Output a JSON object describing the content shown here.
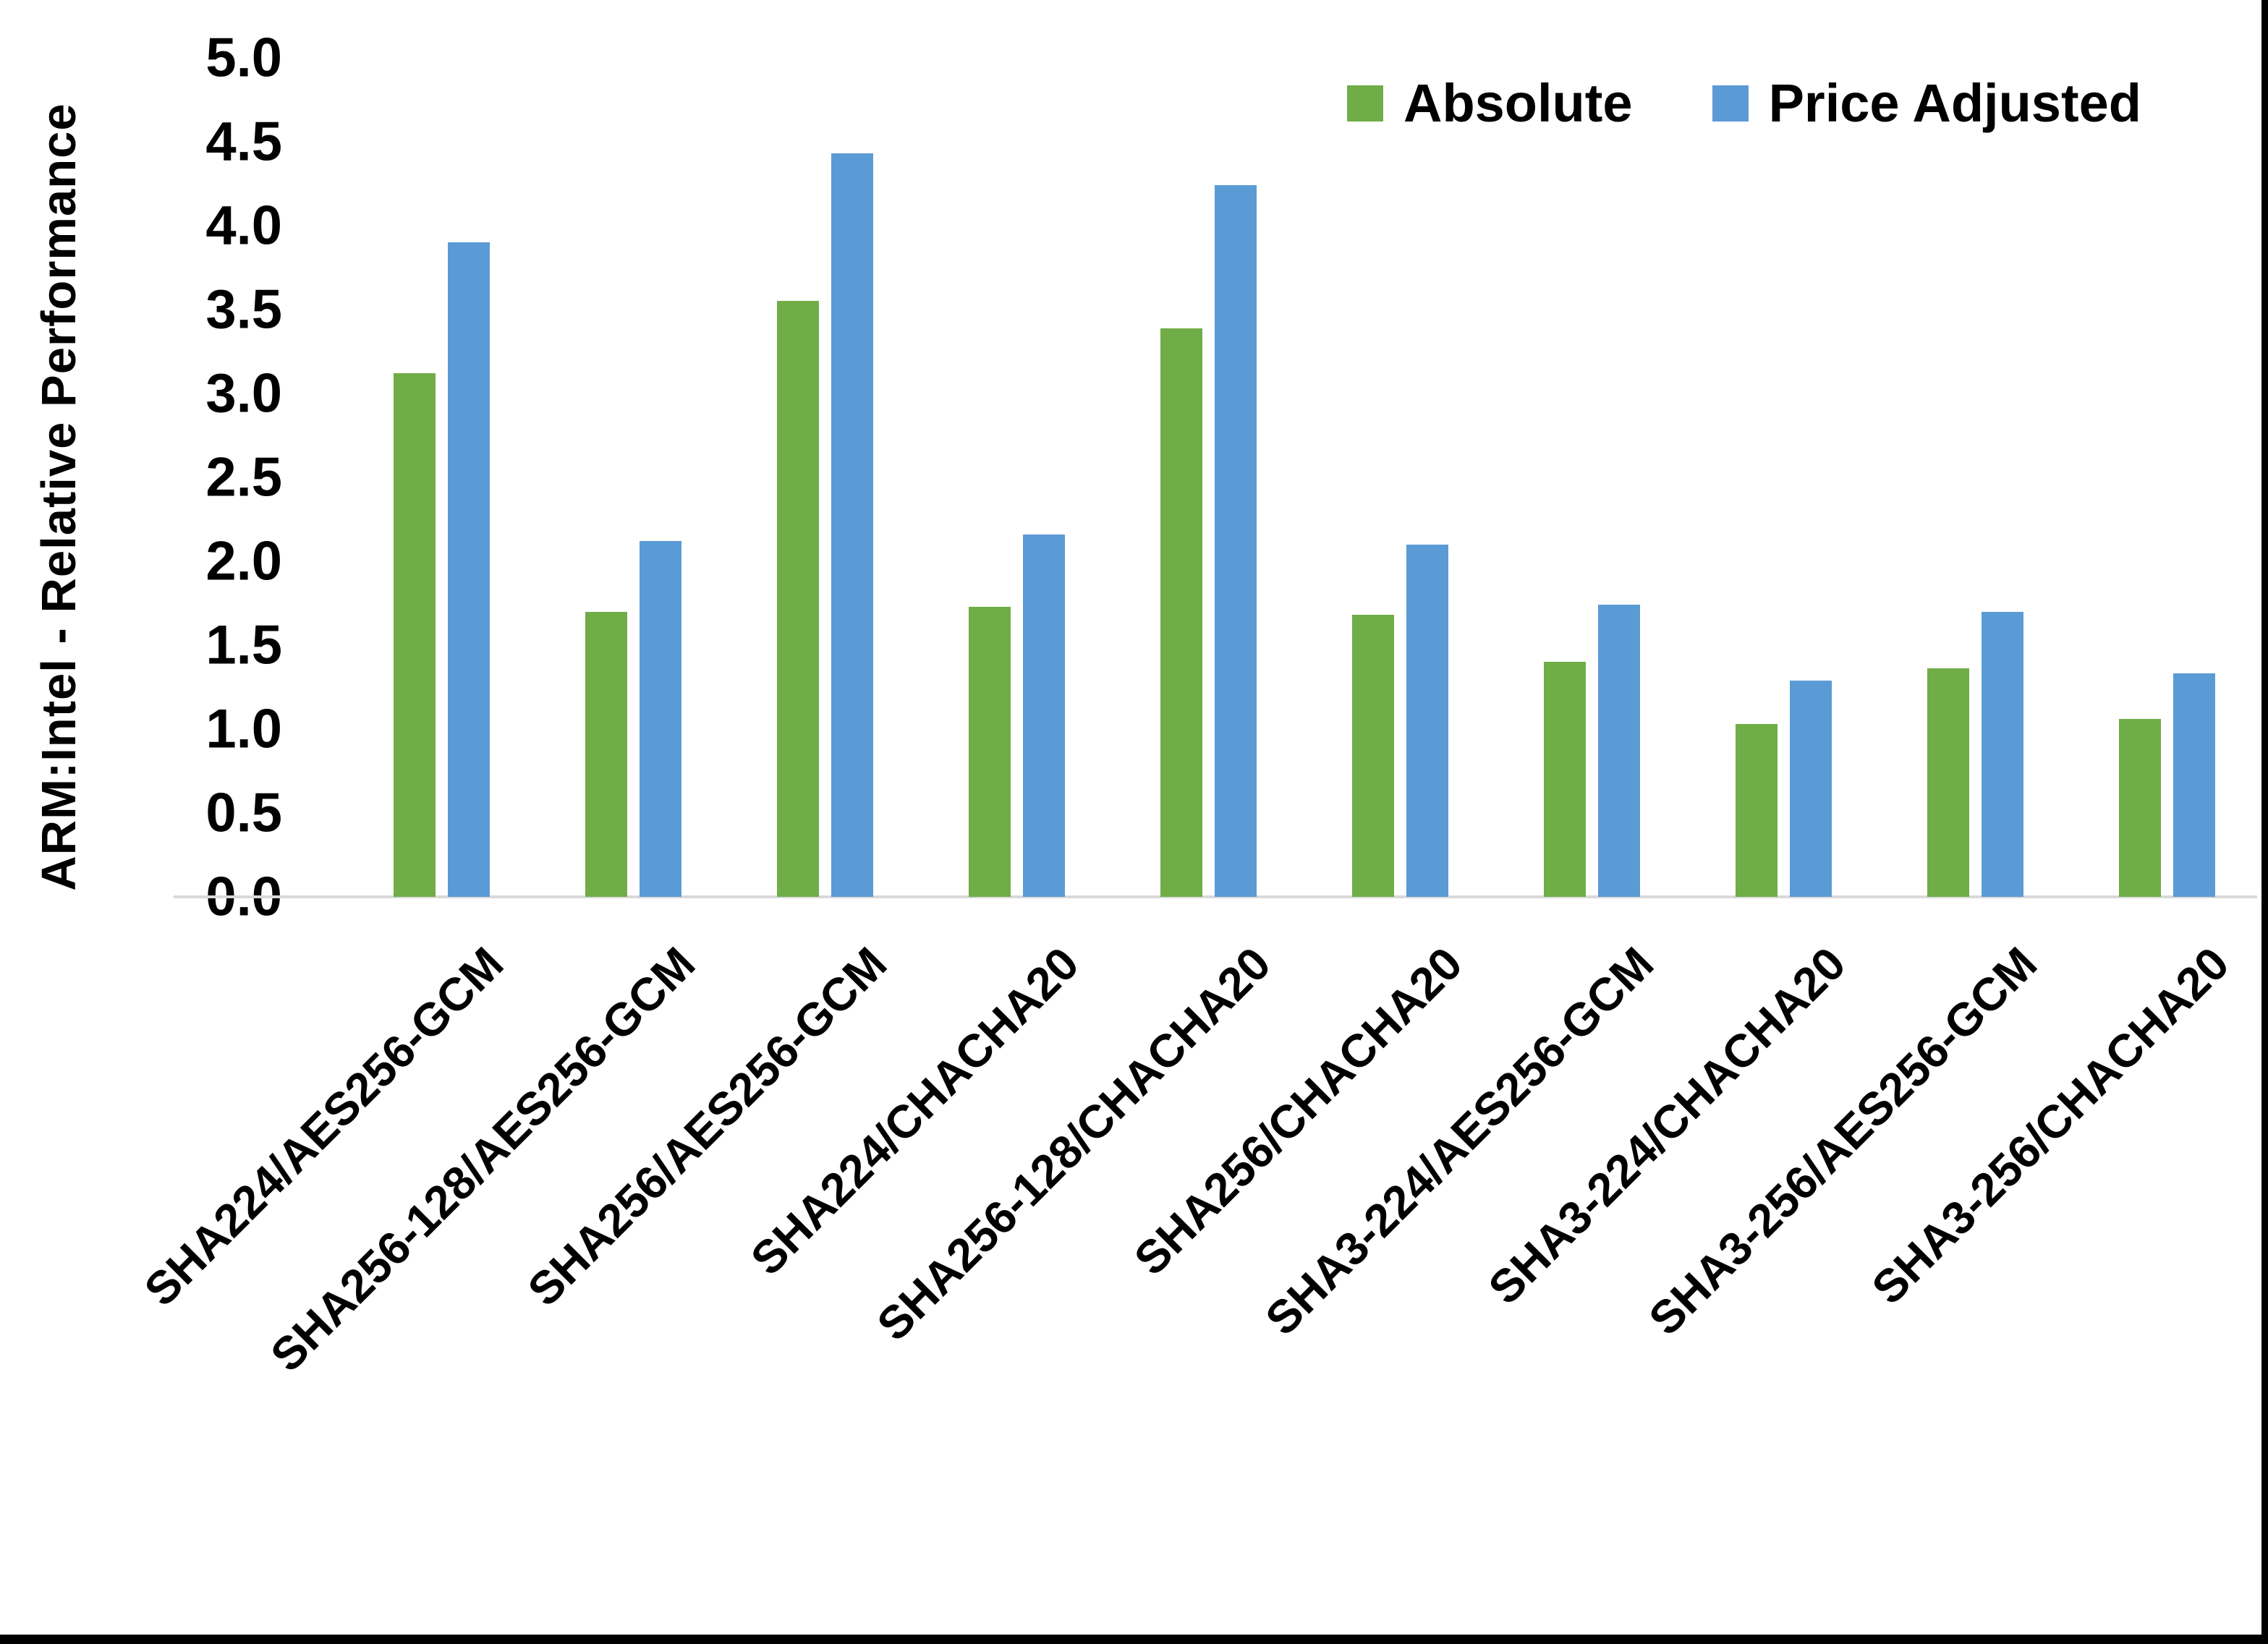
{
  "chart_data": {
    "type": "bar",
    "title": "",
    "xlabel": "",
    "ylabel": "ARM:Intel - Relative Performance",
    "ylim": [
      0.0,
      5.0
    ],
    "ytick_step": 0.5,
    "ytick_labels": [
      "0.0",
      "0.5",
      "1.0",
      "1.5",
      "2.0",
      "2.5",
      "3.0",
      "3.5",
      "4.0",
      "4.5",
      "5.0"
    ],
    "grid": false,
    "legend_position": "top-right",
    "baseline_color": "#D9D9D9",
    "categories": [
      "SHA224/AES256-GCM",
      "SHA256-128/AES256-GCM",
      "SHA256/AES256-GCM",
      "SHA224/CHACHA20",
      "SHA256-128/CHACHA20",
      "SHA256/CHACHA20",
      "SHA3-224/AES256-GCM",
      "SHA3-224/CHACHA20",
      "SHA3-256/AES256-GCM",
      "SHA3-256/CHACHA20"
    ],
    "series": [
      {
        "name": "Absolute",
        "color": "#70AD47",
        "values": [
          3.12,
          1.7,
          3.55,
          1.73,
          3.39,
          1.68,
          1.4,
          1.03,
          1.36,
          1.06
        ]
      },
      {
        "name": "Price Adjusted",
        "color": "#5B9BD5",
        "values": [
          3.9,
          2.12,
          4.43,
          2.16,
          4.24,
          2.1,
          1.74,
          1.29,
          1.7,
          1.33
        ]
      }
    ]
  }
}
